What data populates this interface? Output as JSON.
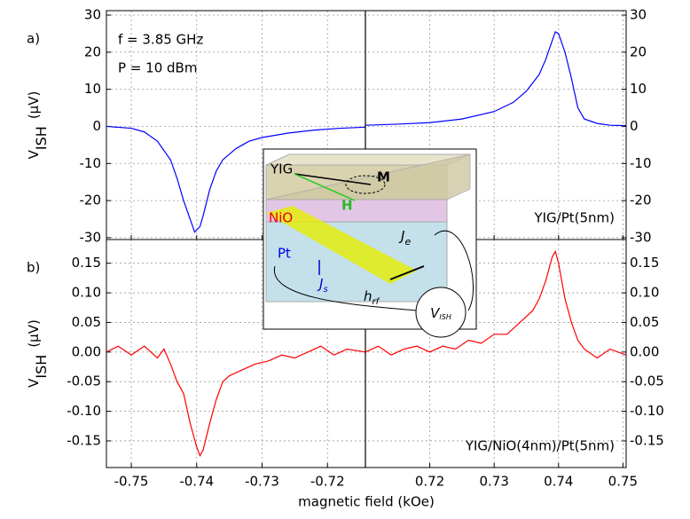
{
  "chart_data": [
    {
      "type": "line",
      "label": "a)",
      "color": "#0000ff",
      "grid": true,
      "ylim": [
        -30.5,
        31.2
      ],
      "yticks": [
        -30,
        -20,
        -10,
        0,
        10,
        20,
        30
      ],
      "ylabel": {
        "symbol": "V",
        "subscript": "ISH",
        "unit": "(μV)"
      },
      "annotations": [
        "f = 3.85 GHz",
        "P = 10 dBm",
        "YIG/Pt(5nm)"
      ],
      "segments": [
        {
          "xlim": [
            -0.7538,
            -0.7142
          ],
          "xticks": [
            -0.75,
            -0.74,
            -0.73,
            -0.72
          ],
          "x": [
            -0.7538,
            -0.75,
            -0.748,
            -0.746,
            -0.744,
            -0.743,
            -0.742,
            -0.741,
            -0.7403,
            -0.7395,
            -0.739,
            -0.738,
            -0.737,
            -0.736,
            -0.734,
            -0.732,
            -0.73,
            -0.726,
            -0.722,
            -0.718,
            -0.7142
          ],
          "values": [
            0,
            -0.5,
            -1.5,
            -4,
            -9,
            -14,
            -20,
            -25,
            -28.5,
            -27,
            -24,
            -17,
            -12,
            -9,
            -6,
            -4,
            -3,
            -1.8,
            -1,
            -0.5,
            -0.2
          ]
        },
        {
          "xlim": [
            0.71,
            0.7505
          ],
          "xticks": [
            0.72,
            0.73,
            0.74,
            0.75
          ],
          "x": [
            0.71,
            0.715,
            0.72,
            0.725,
            0.73,
            0.733,
            0.735,
            0.737,
            0.738,
            0.739,
            0.7395,
            0.74,
            0.741,
            0.742,
            0.743,
            0.744,
            0.746,
            0.748,
            0.7505
          ],
          "values": [
            0.3,
            0.6,
            1,
            2,
            4,
            6.5,
            9.5,
            14,
            18,
            23,
            25.5,
            25,
            20,
            13,
            5,
            2,
            0.8,
            0.3,
            0.2
          ]
        }
      ]
    },
    {
      "type": "line",
      "label": "b)",
      "color": "#ff0000",
      "grid": true,
      "ylim": [
        -0.195,
        0.19
      ],
      "yticks": [
        {
          "value": -0.15,
          "label": "-0.15"
        },
        {
          "value": -0.1,
          "label": "-0.10"
        },
        {
          "value": -0.05,
          "label": "-0.05"
        },
        {
          "value": 0,
          "label": "0.00"
        },
        {
          "value": 0.05,
          "label": "0.05"
        },
        {
          "value": 0.1,
          "label": "0.10"
        },
        {
          "value": 0.15,
          "label": "0.15"
        }
      ],
      "ylabel": {
        "symbol": "V",
        "subscript": "ISH",
        "unit": "(μV)"
      },
      "xlabel": "magnetic field (kOe)",
      "annotations": [
        "YIG/NiO(4nm)/Pt(5nm)"
      ],
      "segments": [
        {
          "xlim": [
            -0.7538,
            -0.7142
          ],
          "xticks": [
            -0.75,
            -0.74,
            -0.73,
            -0.72
          ],
          "x": [
            -0.7538,
            -0.752,
            -0.75,
            -0.748,
            -0.746,
            -0.745,
            -0.744,
            -0.743,
            -0.742,
            -0.741,
            -0.74,
            -0.7395,
            -0.739,
            -0.738,
            -0.737,
            -0.736,
            -0.735,
            -0.733,
            -0.731,
            -0.729,
            -0.727,
            -0.725,
            -0.723,
            -0.721,
            -0.719,
            -0.717,
            -0.7142
          ],
          "values": [
            0,
            0.01,
            -0.005,
            0.01,
            -0.01,
            0.005,
            -0.02,
            -0.05,
            -0.07,
            -0.12,
            -0.16,
            -0.175,
            -0.165,
            -0.12,
            -0.08,
            -0.05,
            -0.04,
            -0.03,
            -0.02,
            -0.015,
            -0.005,
            -0.01,
            0,
            0.01,
            -0.005,
            0.005,
            0
          ]
        },
        {
          "xlim": [
            0.71,
            0.7505
          ],
          "xticks": [
            0.72,
            0.73,
            0.74,
            0.75
          ],
          "x": [
            0.71,
            0.712,
            0.714,
            0.716,
            0.718,
            0.72,
            0.722,
            0.724,
            0.726,
            0.728,
            0.73,
            0.732,
            0.734,
            0.736,
            0.737,
            0.738,
            0.739,
            0.7395,
            0.74,
            0.741,
            0.742,
            0.743,
            0.744,
            0.746,
            0.748,
            0.7505
          ],
          "values": [
            0,
            0.01,
            -0.005,
            0.005,
            0.01,
            0,
            0.01,
            0.005,
            0.02,
            0.015,
            0.03,
            0.03,
            0.05,
            0.07,
            0.09,
            0.12,
            0.16,
            0.17,
            0.15,
            0.09,
            0.05,
            0.02,
            0.005,
            -0.01,
            0.005,
            -0.005
          ]
        }
      ]
    }
  ],
  "inset": {
    "yig": "YIG",
    "m": "M",
    "h": "H",
    "nio": "NiO",
    "pt": "Pt",
    "je": {
      "symbol": "J",
      "subscript": "e"
    },
    "js": {
      "symbol": "J",
      "subscript": "s"
    },
    "hrf": {
      "symbol": "h",
      "subscript": "rf"
    },
    "vish": {
      "symbol": "V",
      "subscript": "ISH"
    }
  }
}
